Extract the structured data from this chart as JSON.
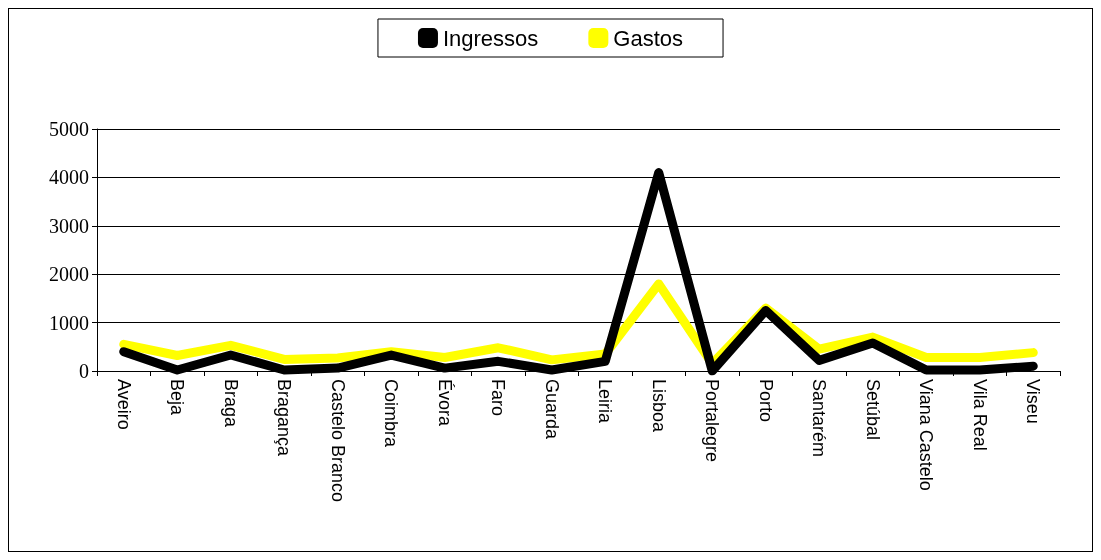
{
  "chart_data": {
    "type": "line",
    "categories": [
      "Aveiro",
      "Beja",
      "Braga",
      "Bragança",
      "Castelo Branco",
      "Coimbra",
      "Évora",
      "Faro",
      "Guarda",
      "Leiria",
      "Lisboa",
      "Portalegre",
      "Porto",
      "Santarém",
      "Setúbal",
      "Viana Castelo",
      "Vila Real",
      "Viseu"
    ],
    "series": [
      {
        "name": "Gastos",
        "color": "#ffff00",
        "values": [
          550,
          320,
          530,
          240,
          270,
          400,
          280,
          480,
          230,
          350,
          1800,
          150,
          1300,
          450,
          700,
          280,
          280,
          380
        ]
      },
      {
        "name": "Ingressos",
        "color": "#000000",
        "values": [
          400,
          20,
          330,
          20,
          60,
          330,
          60,
          200,
          20,
          200,
          4100,
          0,
          1250,
          220,
          580,
          20,
          20,
          100
        ]
      }
    ],
    "ylim": [
      0,
      5000
    ],
    "yticks": [
      0,
      1000,
      2000,
      3000,
      4000,
      5000
    ],
    "grid": "y",
    "legend": "top",
    "marker": "none",
    "line_style": "solid"
  }
}
